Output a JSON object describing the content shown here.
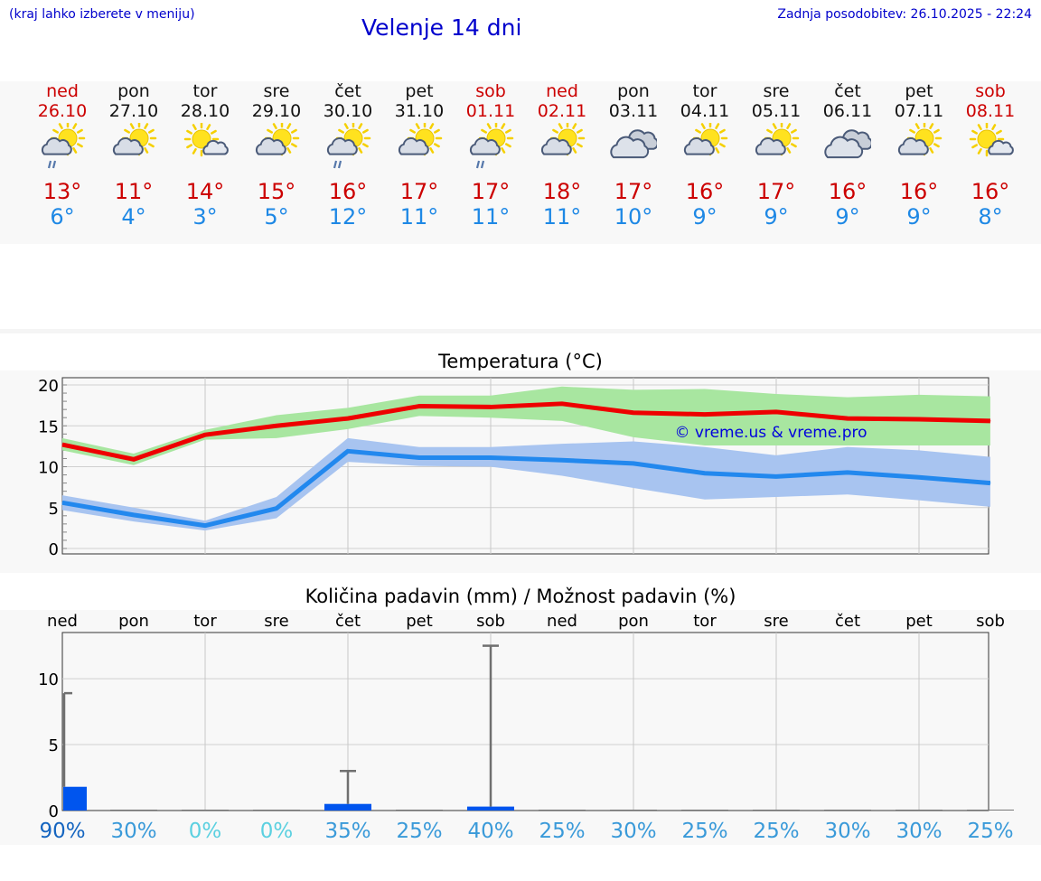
{
  "header": {
    "left_note": "(kraj lahko izberete v meniju)",
    "title": "Velenje 14 dni",
    "updated": "Zadnja posodobitev: 26.10.2025 - 22:24"
  },
  "colors": {
    "max_line": "#ee0000",
    "max_band": "#a8e6a0",
    "min_line": "#2288ee",
    "min_band": "#a8c4f0",
    "bar": "#0055ee",
    "err": "#707070"
  },
  "days": [
    {
      "name": "ned",
      "date": "26.10",
      "weekend": true,
      "icon": "sun-cloud-rain-icon",
      "tmax": "13°",
      "tmin": "6°"
    },
    {
      "name": "pon",
      "date": "27.10",
      "weekend": false,
      "icon": "sun-cloud-icon",
      "tmax": "11°",
      "tmin": "4°"
    },
    {
      "name": "tor",
      "date": "28.10",
      "weekend": false,
      "icon": "sun-small-cloud-icon",
      "tmax": "14°",
      "tmin": "3°"
    },
    {
      "name": "sre",
      "date": "29.10",
      "weekend": false,
      "icon": "sun-cloud-icon",
      "tmax": "15°",
      "tmin": "5°"
    },
    {
      "name": "čet",
      "date": "30.10",
      "weekend": false,
      "icon": "sun-cloud-rain-icon",
      "tmax": "16°",
      "tmin": "12°"
    },
    {
      "name": "pet",
      "date": "31.10",
      "weekend": false,
      "icon": "sun-cloud-icon",
      "tmax": "17°",
      "tmin": "11°"
    },
    {
      "name": "sob",
      "date": "01.11",
      "weekend": true,
      "icon": "sun-cloud-rain-icon",
      "tmax": "17°",
      "tmin": "11°"
    },
    {
      "name": "ned",
      "date": "02.11",
      "weekend": true,
      "icon": "sun-cloud-icon",
      "tmax": "18°",
      "tmin": "11°"
    },
    {
      "name": "pon",
      "date": "03.11",
      "weekend": false,
      "icon": "cloudy-icon",
      "tmax": "17°",
      "tmin": "10°"
    },
    {
      "name": "tor",
      "date": "04.11",
      "weekend": false,
      "icon": "sun-cloud-icon",
      "tmax": "16°",
      "tmin": "9°"
    },
    {
      "name": "sre",
      "date": "05.11",
      "weekend": false,
      "icon": "sun-cloud-icon",
      "tmax": "17°",
      "tmin": "9°"
    },
    {
      "name": "čet",
      "date": "06.11",
      "weekend": false,
      "icon": "cloudy-icon",
      "tmax": "16°",
      "tmin": "9°"
    },
    {
      "name": "pet",
      "date": "07.11",
      "weekend": false,
      "icon": "sun-cloud-icon",
      "tmax": "16°",
      "tmin": "9°"
    },
    {
      "name": "sob",
      "date": "08.11",
      "weekend": true,
      "icon": "sun-small-cloud-icon",
      "tmax": "16°",
      "tmin": "8°"
    }
  ],
  "chart_data": [
    {
      "type": "line",
      "title": "Temperatura (°C)",
      "watermark": "© vreme.us & vreme.pro",
      "ylim": [
        0,
        20
      ],
      "yticks": [
        "0",
        "5",
        "10",
        "15",
        "20"
      ],
      "x": [
        0,
        1,
        2,
        3,
        4,
        5,
        6,
        7,
        8,
        9,
        10,
        11,
        12,
        13
      ],
      "series": [
        {
          "name": "max",
          "values": [
            12.7,
            10.9,
            13.9,
            15.0,
            15.9,
            17.4,
            17.3,
            17.7,
            16.6,
            16.4,
            16.7,
            15.9,
            15.8,
            15.6
          ],
          "band_low": [
            12.0,
            10.2,
            13.3,
            13.5,
            14.6,
            16.2,
            16.0,
            15.6,
            13.6,
            12.6,
            12.6,
            12.6,
            12.6,
            12.6
          ],
          "band_high": [
            13.5,
            11.6,
            14.5,
            16.3,
            17.2,
            18.7,
            18.7,
            19.8,
            19.4,
            19.5,
            18.9,
            18.5,
            18.8,
            18.6
          ]
        },
        {
          "name": "min",
          "values": [
            5.6,
            4.1,
            2.8,
            4.9,
            11.9,
            11.1,
            11.1,
            10.8,
            10.4,
            9.2,
            8.8,
            9.3,
            8.7,
            8.0
          ],
          "band_low": [
            4.7,
            3.3,
            2.2,
            3.7,
            10.6,
            10.1,
            10.0,
            8.9,
            7.4,
            6.0,
            6.3,
            6.6,
            5.9,
            5.1
          ],
          "band_high": [
            6.5,
            5.0,
            3.4,
            6.3,
            13.5,
            12.4,
            12.4,
            12.8,
            13.1,
            12.4,
            11.4,
            12.4,
            12.0,
            11.2
          ]
        }
      ]
    },
    {
      "type": "bar",
      "title": "Količina padavin (mm) / Možnost padavin (%)",
      "ylim": [
        0,
        13.5
      ],
      "yticks": [
        "0",
        "5",
        "10"
      ],
      "categories": [
        "ned",
        "pon",
        "tor",
        "sre",
        "čet",
        "pet",
        "sob",
        "ned",
        "pon",
        "tor",
        "sre",
        "čet",
        "pet",
        "sob"
      ],
      "values": [
        1.8,
        0,
        0,
        0,
        0.5,
        0,
        0.3,
        0,
        0,
        0,
        0,
        0,
        0,
        0
      ],
      "error_high": [
        8.9,
        0,
        0,
        0,
        3.0,
        0,
        12.5,
        0,
        0,
        0,
        0,
        0,
        0,
        0
      ],
      "probabilities": [
        "90%",
        "30%",
        "0%",
        "0%",
        "35%",
        "25%",
        "40%",
        "25%",
        "30%",
        "25%",
        "25%",
        "30%",
        "30%",
        "25%"
      ],
      "prob_colors": [
        "#1565c0",
        "#3a9ad9",
        "#5bd0e0",
        "#5bd0e0",
        "#3a9ad9",
        "#3a9ad9",
        "#3a9ad9",
        "#3a9ad9",
        "#3a9ad9",
        "#3a9ad9",
        "#3a9ad9",
        "#3a9ad9",
        "#3a9ad9",
        "#3a9ad9"
      ]
    }
  ]
}
